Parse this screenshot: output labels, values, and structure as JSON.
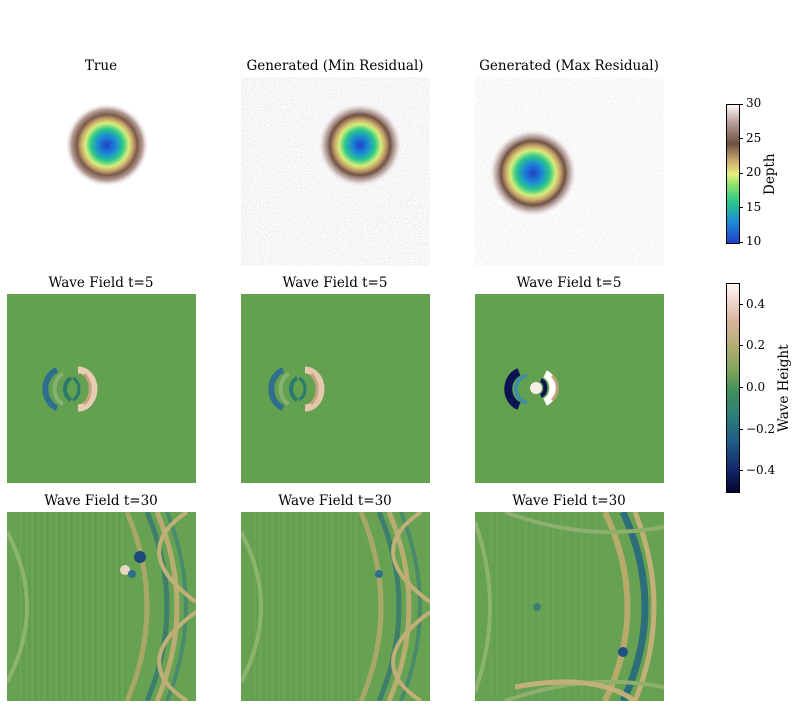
{
  "chart_data": [
    {
      "type": "heatmap",
      "title": "True",
      "content": "depth map",
      "colormap": "Depth"
    },
    {
      "type": "heatmap",
      "title": "Generated (Min Residual)",
      "content": "depth map"
    },
    {
      "type": "heatmap",
      "title": "Generated (Max Residual)",
      "content": "depth map"
    },
    {
      "type": "heatmap",
      "title": "Wave Field t=5",
      "content": "wave height"
    },
    {
      "type": "heatmap",
      "title": "Wave Field t=5",
      "content": "wave height"
    },
    {
      "type": "heatmap",
      "title": "Wave Field t=5",
      "content": "wave height"
    },
    {
      "type": "heatmap",
      "title": "Wave Field t=30",
      "content": "wave height"
    },
    {
      "type": "heatmap",
      "title": "Wave Field t=30",
      "content": "wave height"
    },
    {
      "type": "heatmap",
      "title": "Wave Field t=30",
      "content": "wave height"
    }
  ],
  "colorbars": {
    "depth": {
      "label": "Depth",
      "min": 10,
      "max": 30,
      "ticks": [
        "30",
        "25",
        "20",
        "15",
        "10"
      ]
    },
    "wave": {
      "label": "Wave Height",
      "min": -0.5,
      "max": 0.5,
      "ticks": [
        "0.4",
        "0.2",
        "0.0",
        "−0.2",
        "−0.4"
      ]
    }
  },
  "colors": {
    "background_green": "#63a050",
    "depth_low": "#1f3fc9",
    "depth_high": "#f5eeee",
    "wave_low": "#07052e",
    "wave_high": "#fff8f4"
  }
}
